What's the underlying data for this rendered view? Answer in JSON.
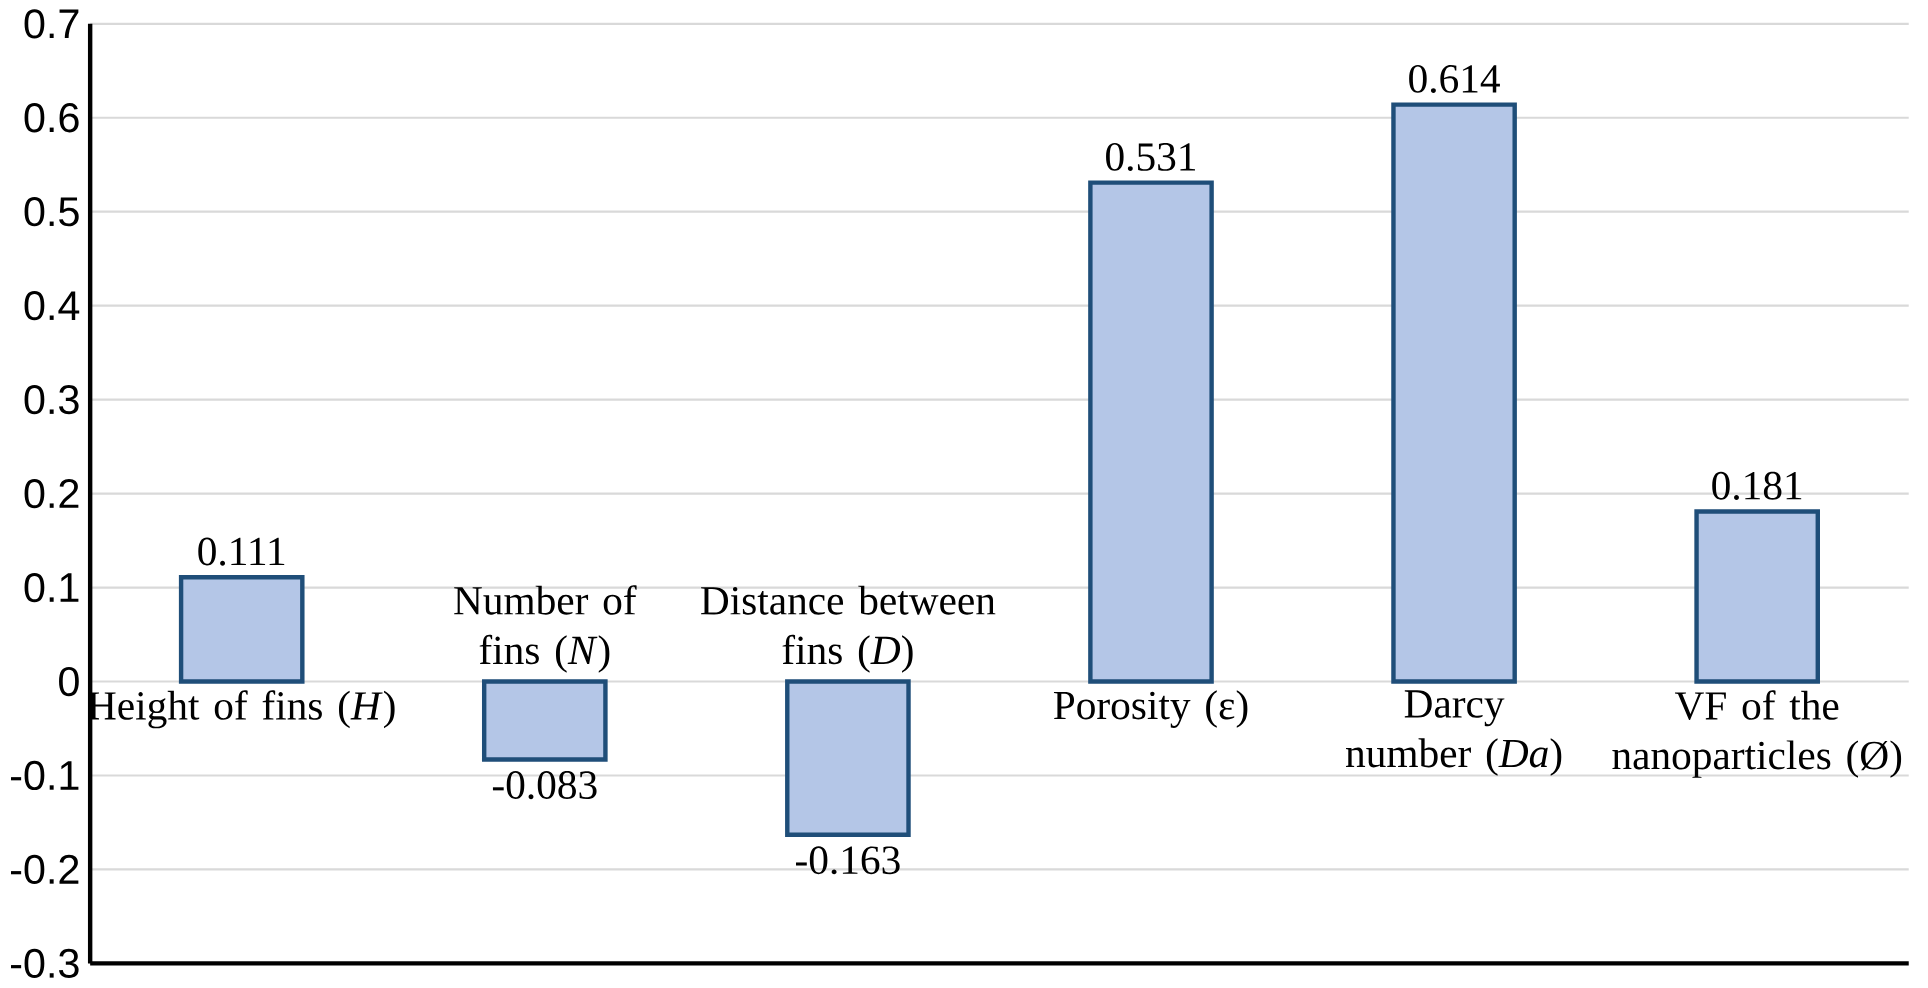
{
  "chart_data": {
    "type": "bar",
    "categories": [
      "Height of fins (*H*)",
      "Number of fins (*N*)",
      "Distance between fins (*D*)",
      "Porosity (ε)",
      "Darcy number (*Da*)",
      "VF of the nanoparticles (Ø)"
    ],
    "values": [
      0.111,
      -0.083,
      -0.163,
      0.531,
      0.614,
      0.181
    ],
    "color": "#b4c6e7",
    "ylim": [
      -0.3,
      0.7
    ],
    "yticks": [
      -0.3,
      -0.2,
      -0.1,
      0,
      0.1,
      0.2,
      0.3,
      0.4,
      0.5,
      0.6,
      0.7
    ],
    "grid": "y",
    "data_labels": true
  }
}
